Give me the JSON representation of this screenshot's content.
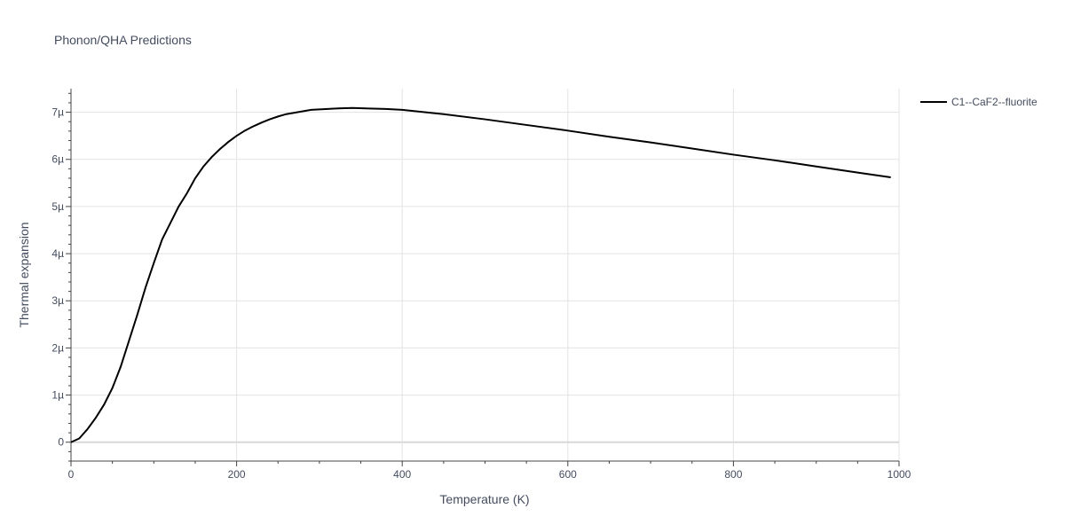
{
  "chart_data": {
    "type": "line",
    "title": "Phonon/QHA Predictions",
    "xlabel": "Temperature (K)",
    "ylabel": "Thermal expansion",
    "xlim": [
      0,
      1000
    ],
    "ylim": [
      -4e-07,
      7.5e-06
    ],
    "x_ticks": [
      0,
      200,
      400,
      600,
      800,
      1000
    ],
    "x_tick_labels": [
      "0",
      "200",
      "400",
      "600",
      "800",
      "1000"
    ],
    "y_ticks": [
      0,
      1e-06,
      2e-06,
      3e-06,
      4e-06,
      5e-06,
      6e-06,
      7e-06
    ],
    "y_tick_labels": [
      "0",
      "1µ",
      "2µ",
      "3µ",
      "4µ",
      "5µ",
      "6µ",
      "7µ"
    ],
    "grid": true,
    "legend_position": "top-right",
    "series": [
      {
        "name": "C1--CaF2--fluorite",
        "color": "#000000",
        "x": [
          0,
          10,
          20,
          30,
          40,
          50,
          60,
          70,
          80,
          90,
          100,
          110,
          120,
          130,
          140,
          150,
          160,
          170,
          180,
          190,
          200,
          210,
          220,
          230,
          240,
          250,
          260,
          270,
          280,
          290,
          300,
          320,
          340,
          360,
          380,
          400,
          450,
          500,
          550,
          600,
          650,
          700,
          750,
          800,
          850,
          900,
          950,
          990
        ],
        "y": [
          0,
          8e-08,
          2.8e-07,
          5.2e-07,
          8e-07,
          1.15e-06,
          1.6e-06,
          2.15e-06,
          2.7e-06,
          3.28e-06,
          3.8e-06,
          4.3e-06,
          4.65e-06,
          5e-06,
          5.28e-06,
          5.6e-06,
          5.85e-06,
          6.05e-06,
          6.22e-06,
          6.37e-06,
          6.5e-06,
          6.61e-06,
          6.7e-06,
          6.78e-06,
          6.85e-06,
          6.91e-06,
          6.96e-06,
          6.99e-06,
          7.02e-06,
          7.05e-06,
          7.06e-06,
          7.08e-06,
          7.09e-06,
          7.08e-06,
          7.07e-06,
          7.05e-06,
          6.96e-06,
          6.85e-06,
          6.73e-06,
          6.61e-06,
          6.48e-06,
          6.36e-06,
          6.23e-06,
          6.1e-06,
          5.98e-06,
          5.85e-06,
          5.72e-06,
          5.62e-06
        ]
      }
    ]
  }
}
